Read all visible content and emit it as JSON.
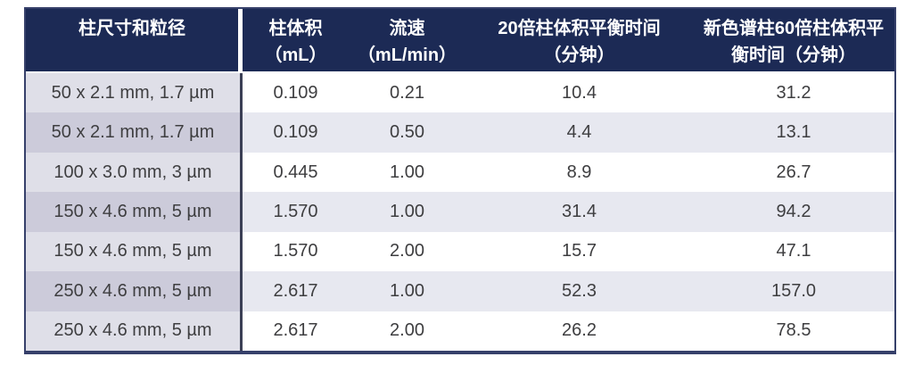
{
  "table": {
    "title_semantics": "column-equilibration-time-table",
    "header": {
      "columns": [
        {
          "line1": "柱尺寸和粒径",
          "line2": ""
        },
        {
          "line1": "柱体积",
          "line2": "（mL）"
        },
        {
          "line1": "流速",
          "line2": "（mL/min）"
        },
        {
          "line1": "20倍柱体积平衡时间",
          "line2": "（分钟）"
        },
        {
          "line1": "新色谱柱60倍柱体积平",
          "line2": "衡时间（分钟）"
        }
      ]
    },
    "rows": [
      [
        "50 x 2.1 mm, 1.7 µm",
        "0.109",
        "0.21",
        "10.4",
        "31.2"
      ],
      [
        "50 x 2.1 mm, 1.7 µm",
        "0.109",
        "0.50",
        "4.4",
        "13.1"
      ],
      [
        "100 x 3.0 mm, 3 µm",
        "0.445",
        "1.00",
        "8.9",
        "26.7"
      ],
      [
        "150 x 4.6 mm, 5 µm",
        "1.570",
        "1.00",
        "31.4",
        "94.2"
      ],
      [
        "150 x 4.6 mm, 5 µm",
        "1.570",
        "2.00",
        "15.7",
        "47.1"
      ],
      [
        "250 x 4.6 mm, 5 µm",
        "2.617",
        "1.00",
        "52.3",
        "157.0"
      ],
      [
        "250 x 4.6 mm, 5 µm",
        "2.617",
        "2.00",
        "26.2",
        "78.5"
      ]
    ],
    "colors": {
      "header_bg": "#1c2a55",
      "header_text": "#ffffff",
      "col1_light": "#dfdfe8",
      "col1_dark": "#cccbda",
      "row_light": "#ffffff",
      "row_shaded": "#e7e8f0",
      "body_text": "#3e3e40",
      "border": "#36406a",
      "separator": "#3b3f55"
    }
  }
}
